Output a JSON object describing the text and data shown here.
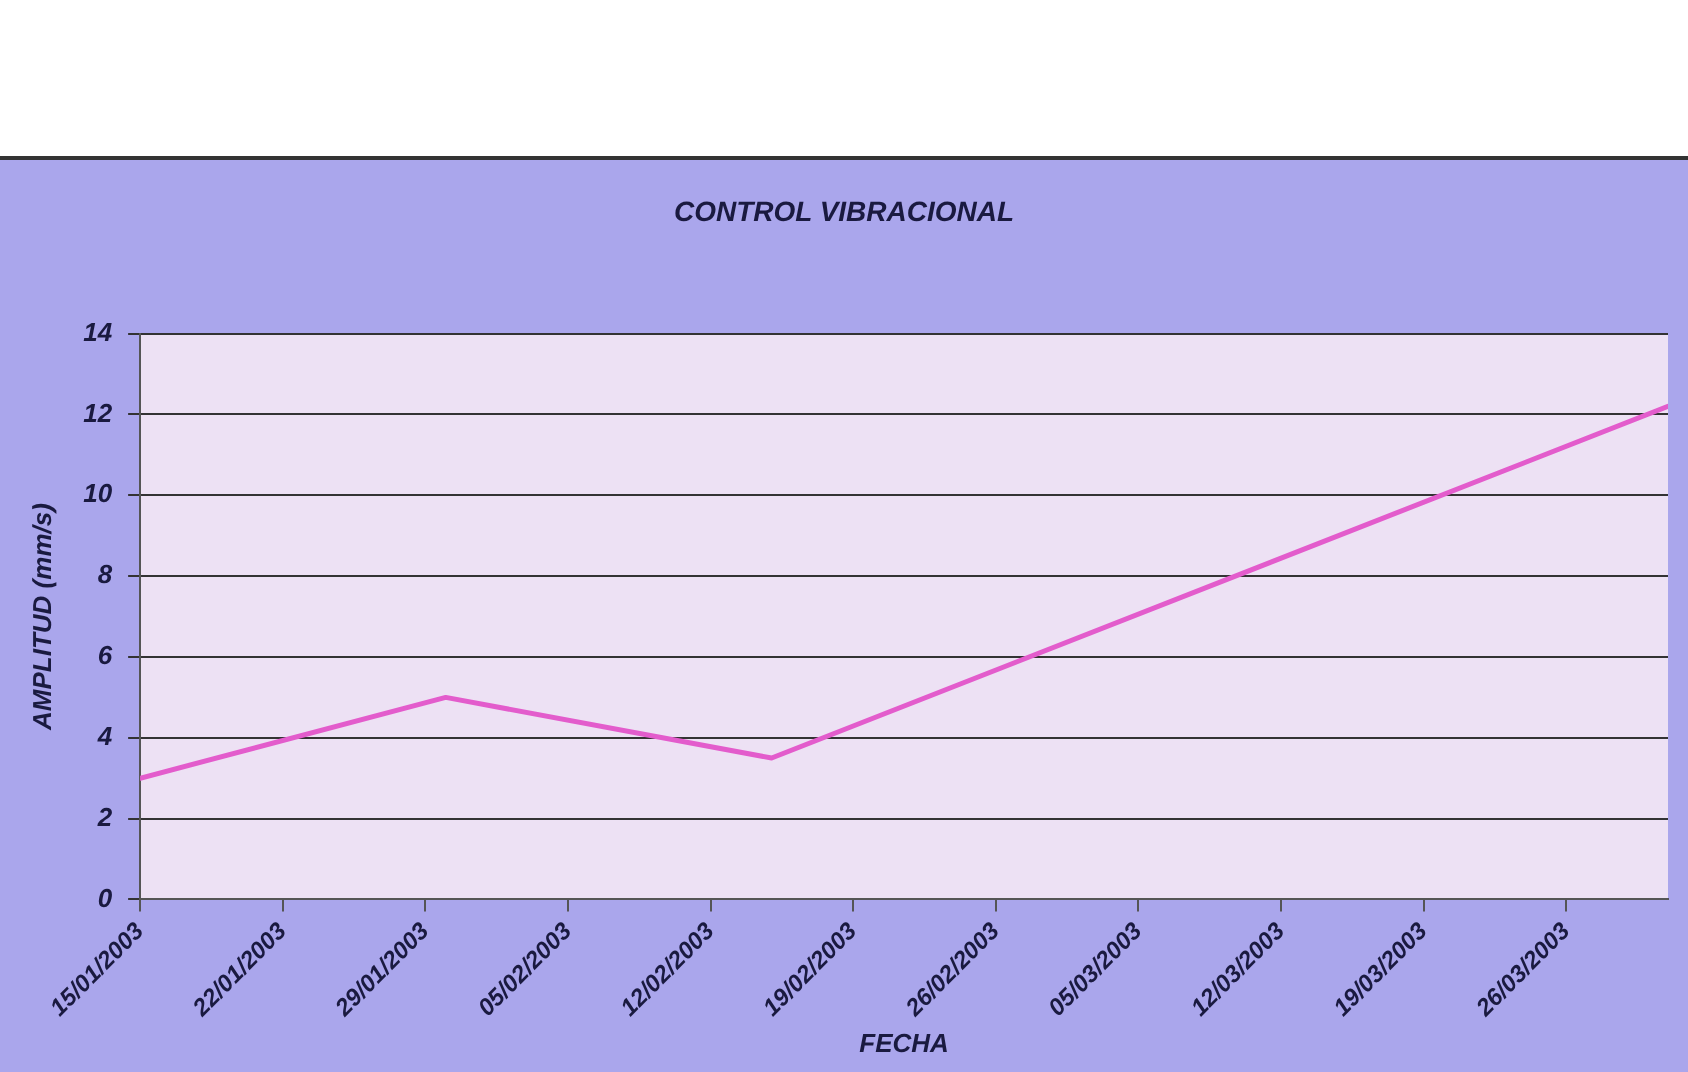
{
  "chart_data": {
    "type": "line",
    "title": "CONTROL VIBRACIONAL",
    "xlabel": "FECHA",
    "ylabel": "AMPLITUD (mm/s)",
    "x": [
      "2003-01-15",
      "2003-01-30",
      "2003-02-15",
      "2003-03-31"
    ],
    "series": [
      {
        "color": "#e35ccc",
        "values": [
          3,
          5,
          3.5,
          12.2
        ]
      }
    ],
    "xlim": [
      "2003-01-15",
      "2003-03-31"
    ],
    "xticks": [
      {
        "value": "2003-01-15",
        "label": "15/01/2003"
      },
      {
        "value": "2003-01-22",
        "label": "22/01/2003"
      },
      {
        "value": "2003-01-29",
        "label": "29/01/2003"
      },
      {
        "value": "2003-02-05",
        "label": "05/02/2003"
      },
      {
        "value": "2003-02-12",
        "label": "12/02/2003"
      },
      {
        "value": "2003-02-19",
        "label": "19/02/2003"
      },
      {
        "value": "2003-02-26",
        "label": "26/02/2003"
      },
      {
        "value": "2003-03-05",
        "label": "05/03/2003"
      },
      {
        "value": "2003-03-12",
        "label": "12/03/2003"
      },
      {
        "value": "2003-03-19",
        "label": "19/03/2003"
      },
      {
        "value": "2003-03-26",
        "label": "26/03/2003"
      }
    ],
    "ylim": [
      0,
      14
    ],
    "yticks": [
      0,
      2,
      4,
      6,
      8,
      10,
      12,
      14
    ],
    "grid": "y",
    "legend": false,
    "marker": "none",
    "line_style": "solid"
  }
}
